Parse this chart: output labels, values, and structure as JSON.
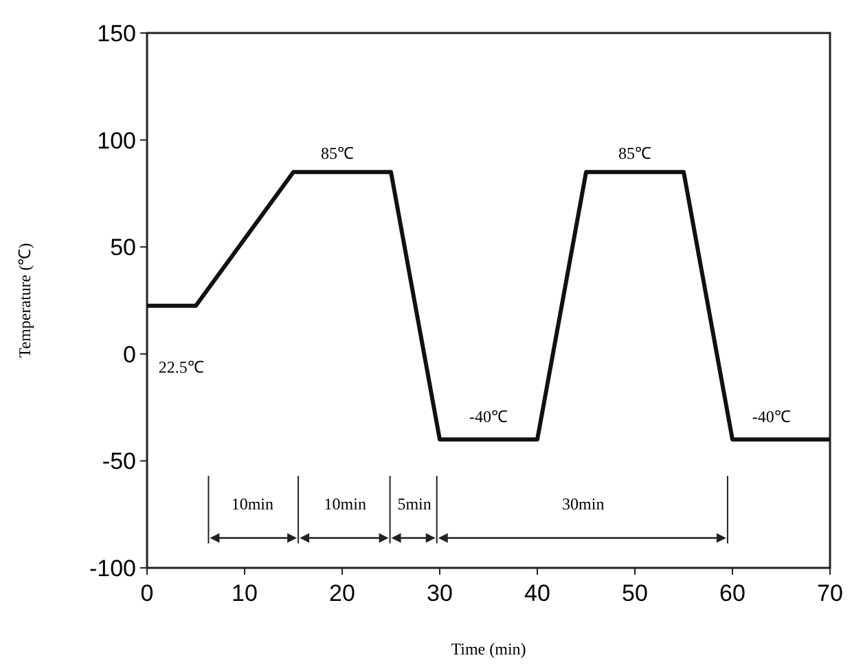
{
  "chart_data": {
    "type": "line",
    "xlabel": "Time (min)",
    "ylabel": "Temperature (℃)",
    "x": [
      0,
      5,
      15,
      25,
      30,
      40,
      45,
      55,
      60,
      70
    ],
    "series": [
      {
        "color": "#111111",
        "values": [
          22.5,
          22.5,
          85,
          85,
          -40,
          -40,
          85,
          85,
          -40,
          -40
        ]
      }
    ],
    "xlim": [
      0,
      70
    ],
    "xticks": [
      0,
      10,
      20,
      30,
      40,
      50,
      60,
      70
    ],
    "ylim": [
      -100,
      150
    ],
    "yticks": [
      -100,
      -50,
      0,
      50,
      100,
      150
    ],
    "grid": false,
    "marker": "none",
    "line_style": "solid",
    "annotations": [
      "85℃",
      "85℃",
      "22.5℃",
      "-40℃",
      "-40℃",
      "10min",
      "10min",
      "5min",
      "30min"
    ]
  }
}
